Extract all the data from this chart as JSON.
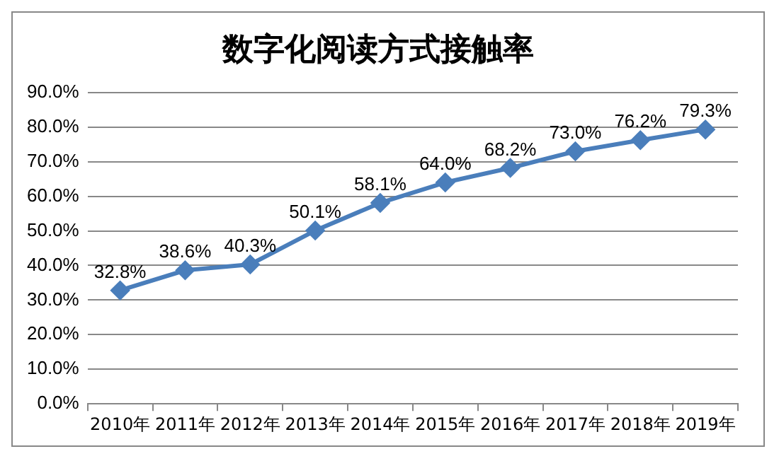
{
  "chart_data": {
    "type": "line",
    "title": "数字化阅读方式接触率",
    "categories": [
      "2010年",
      "2011年",
      "2012年",
      "2013年",
      "2014年",
      "2015年",
      "2016年",
      "2017年",
      "2018年",
      "2019年"
    ],
    "series": [
      {
        "color": "#4a7ebb",
        "values": [
          32.8,
          38.6,
          40.3,
          50.1,
          58.1,
          64.0,
          68.2,
          73.0,
          76.2,
          79.3
        ],
        "value_labels": [
          "32.8%",
          "38.6%",
          "40.3%",
          "50.1%",
          "58.1%",
          "64.0%",
          "68.2%",
          "73.0%",
          "76.2%",
          "79.3%"
        ]
      }
    ],
    "ylim": [
      0,
      90
    ],
    "yticks": [
      {
        "value": 0,
        "label": "0.0%"
      },
      {
        "value": 10,
        "label": "10.0%"
      },
      {
        "value": 20,
        "label": "20.0%"
      },
      {
        "value": 30,
        "label": "30.0%"
      },
      {
        "value": 40,
        "label": "40.0%"
      },
      {
        "value": 50,
        "label": "50.0%"
      },
      {
        "value": 60,
        "label": "60.0%"
      },
      {
        "value": 70,
        "label": "70.0%"
      },
      {
        "value": 80,
        "label": "80.0%"
      },
      {
        "value": 90,
        "label": "90.0%"
      }
    ],
    "grid": "y",
    "legend": false,
    "marker": "diamond",
    "line_style": "solid"
  }
}
